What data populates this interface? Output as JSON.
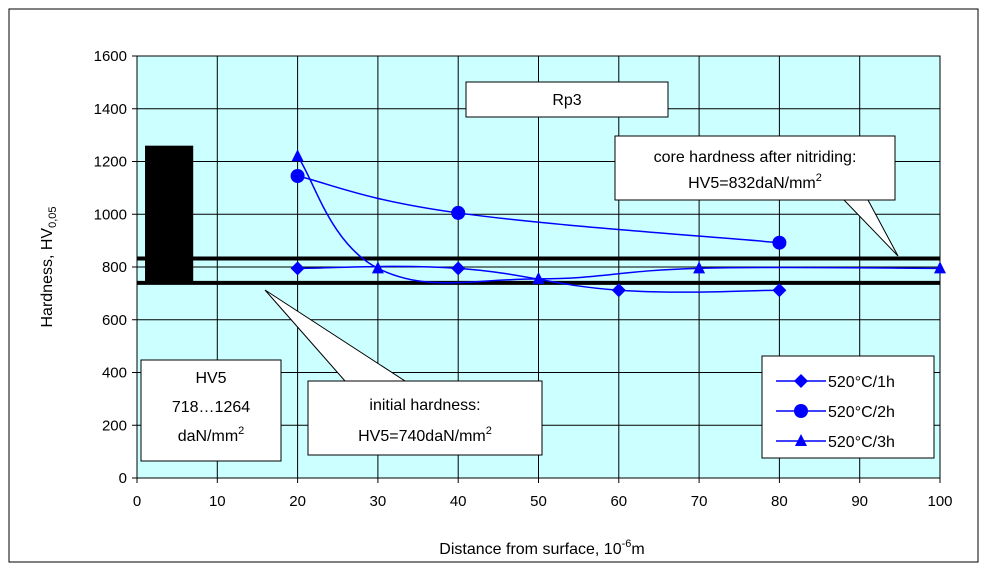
{
  "chart_data": {
    "type": "line",
    "title": "",
    "xlabel": {
      "main": "Distance from surface, 10",
      "sup": "-6",
      "tail": "m"
    },
    "ylabel": {
      "main": "Hardness, HV",
      "sub": "0,05"
    },
    "xlim": [
      0,
      100
    ],
    "ylim": [
      0,
      1600
    ],
    "xticks": [
      "0",
      "10",
      "20",
      "30",
      "40",
      "50",
      "60",
      "70",
      "80",
      "90",
      "100"
    ],
    "yticks": [
      "0",
      "200",
      "400",
      "600",
      "800",
      "1000",
      "1200",
      "1400",
      "1600"
    ],
    "grid": true,
    "plot_background": "#ccffff",
    "series_color": "#0000ff",
    "legend_position": "bottom-right",
    "series": [
      {
        "name": "520°C/1h",
        "marker": "diamond",
        "x": [
          20,
          40,
          60,
          80
        ],
        "y": [
          795,
          795,
          712,
          712
        ]
      },
      {
        "name": "520°C/2h",
        "marker": "circle",
        "x": [
          20,
          40,
          80
        ],
        "y": [
          1145,
          1005,
          892
        ]
      },
      {
        "name": "520°C/3h",
        "marker": "triangle",
        "x": [
          20,
          30,
          50,
          70,
          100
        ],
        "y": [
          1220,
          795,
          755,
          795,
          795
        ]
      }
    ],
    "reference_lines": [
      {
        "name": "core-hardness-line",
        "y": 832
      },
      {
        "name": "initial-hardness-line",
        "y": 740
      }
    ],
    "range_bar": {
      "x": [
        1,
        7
      ],
      "y": [
        740,
        1260
      ]
    },
    "annotations": {
      "rp3": "Rp3",
      "core_line1": "core hardness after nitriding:",
      "core_line2": "HV5=832daN/mm",
      "core_sup": "2",
      "initial_line1": "initial hardness:",
      "initial_line2": "HV5=740daN/mm",
      "initial_sup": "2",
      "range_line1": "HV5",
      "range_line2": "718…1264",
      "range_line3": "daN/mm",
      "range_sup": "2"
    }
  }
}
